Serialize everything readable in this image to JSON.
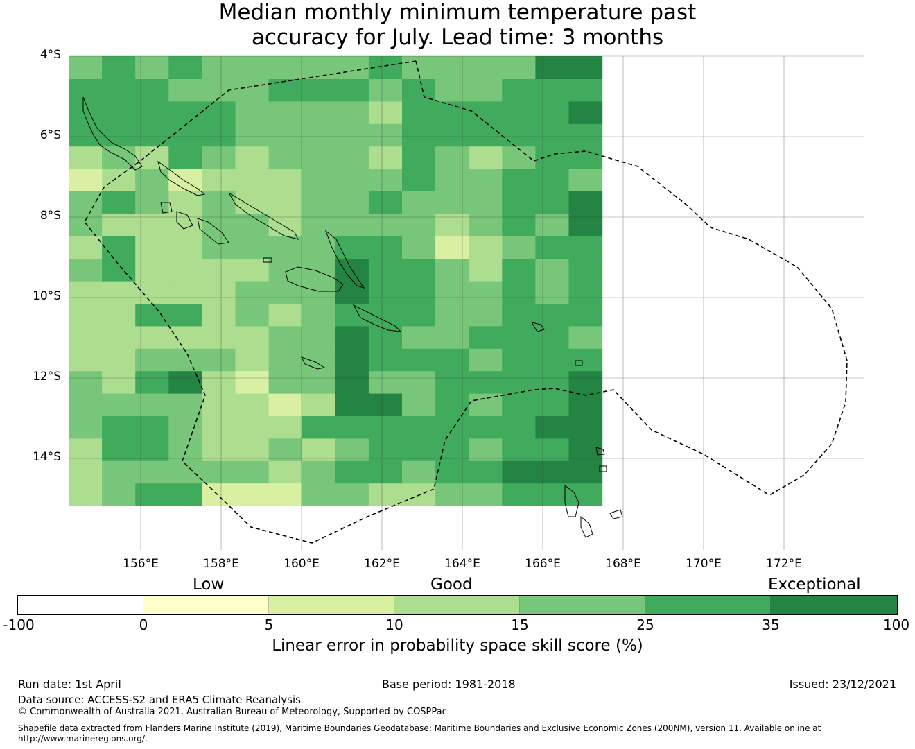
{
  "title_line1": "Median monthly minimum temperature past",
  "title_line2": "accuracy for July. Lead time: 3 months",
  "map": {
    "lat_labels": [
      "4°S",
      "6°S",
      "8°S",
      "10°S",
      "12°S",
      "14°S"
    ],
    "lon_labels": [
      "156°E",
      "158°E",
      "160°E",
      "162°E",
      "164°E",
      "166°E",
      "168°E",
      "170°E",
      "172°E"
    ],
    "grid_rows": [
      "2344111332233444",
      "2333332344344555",
      "2443223234443445",
      "3443222444444455",
      "3333221255343445",
      "3245213353344445",
      "2233323354443444",
      "2222223354334443",
      "2244232344433444",
      "2222233354433434",
      "3422223354432434",
      "2422333344312344",
      "3222332333323435",
      "3432322334333445",
      "1231222333433443",
      "2324323332432344",
      "4444433333444444",
      "4444433332444445",
      "4443334443433444",
      "3434333334333355"
    ],
    "grid_note_reversed": "rows listed from bottom to top"
  },
  "colorbar": {
    "categories": [
      "Low",
      "Good",
      "Exceptional"
    ],
    "ticks": [
      "-100",
      "0",
      "5",
      "10",
      "15",
      "25",
      "35",
      "100"
    ],
    "colors": [
      "#ffffff",
      "#ffffcc",
      "#d9f0a3",
      "#addd8e",
      "#78c679",
      "#41ab5d",
      "#238443"
    ],
    "label": "Linear error in probability space skill score (%)"
  },
  "footer": {
    "run_date": "Run date: 1st April",
    "base_period": "Base period: 1981-2018",
    "issued": "Issued: 23/12/2021",
    "data_source": "Data source: ACCESS-S2 and ERA5 Climate Reanalysis",
    "copyright": "© Commonwealth of Australia 2021, Australian Bureau of Meteorology, Supported by COSPPac",
    "shapefile_line1": "Shapefile data extracted from Flanders Marine Institute (2019), Maritime Boundaries Geodatabase: Maritime Boundaries and Exclusive Economic Zones (200NM), version 11. Available online at",
    "shapefile_line2": "http://www.marineregions.org/."
  }
}
